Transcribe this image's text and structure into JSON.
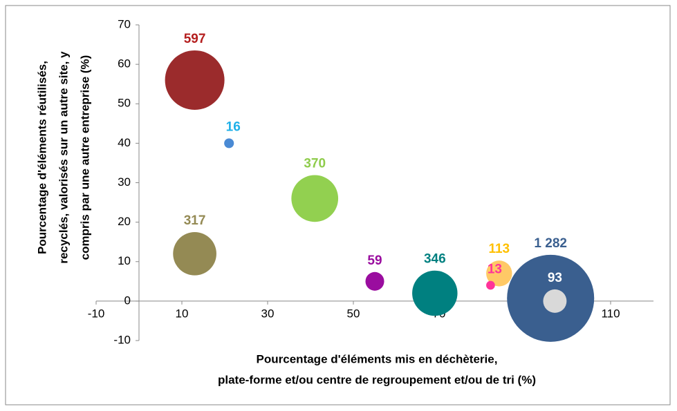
{
  "chart_data": {
    "type": "bubble",
    "x_label": [
      "Pourcentage d'éléments mis en déchèterie,",
      "plate-forme et/ou centre de regroupement et/ou de tri (%)"
    ],
    "y_label": [
      "Pourcentage d'éléments réutilisés,",
      "recyclés, valorisés sur un autre site, y",
      "compris par une autre entreprise (%)"
    ],
    "x": [
      13,
      21,
      41,
      13,
      55,
      69,
      84,
      82,
      96,
      97
    ],
    "values": [
      56,
      40,
      26,
      12,
      5,
      2,
      7,
      4,
      0.7,
      0
    ],
    "sizes": [
      597,
      16,
      370,
      317,
      59,
      346,
      113,
      13,
      1282,
      93
    ],
    "value_labels": [
      "597",
      "16",
      "370",
      "317",
      "59",
      "346",
      "113",
      "13",
      "1 282",
      "93"
    ],
    "colors": [
      "#9b2b2c",
      "#4a8ad4",
      "#92d050",
      "#948a54",
      "#9a0d9f",
      "#008080",
      "#ffc966",
      "#ff3399",
      "#3a5f8f",
      "#d9d9d9"
    ],
    "label_colors": [
      "#b41e1e",
      "#1fb0e8",
      "#8fcc4c",
      "#948a54",
      "#9a0d9f",
      "#008080",
      "#ffc000",
      "#ff3399",
      "#3a5f8f",
      "#ffffff"
    ],
    "xlim": [
      -10,
      120
    ],
    "xticks": [
      -10,
      10,
      30,
      50,
      70,
      90,
      110
    ],
    "ylim": [
      -10,
      70
    ],
    "yticks": [
      -10,
      0,
      10,
      20,
      30,
      40,
      50,
      60,
      70
    ]
  }
}
